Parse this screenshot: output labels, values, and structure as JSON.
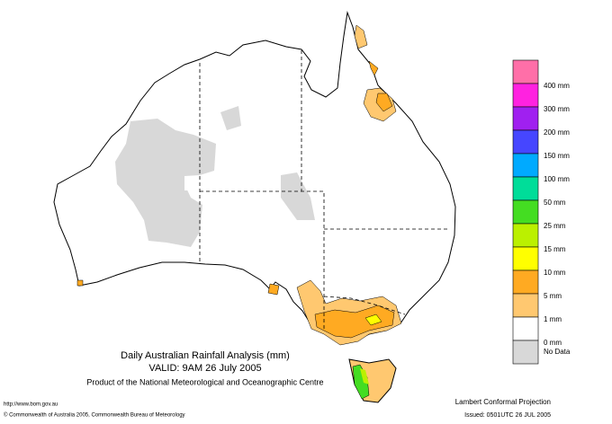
{
  "title": "Daily Australian Rainfall Analysis (mm)",
  "valid": "VALID: 9AM 26 July 2005",
  "product": "Product of the National Meteorological and Oceanographic Centre",
  "url": "http://www.bom.gov.au",
  "copyright": "© Commonwealth of Australia 2005, Commonwealth Bureau of Meteorology",
  "projection": "Lambert Conformal Projection",
  "issued": "Issued: 0501UTC 26 JUL 2005",
  "legend": {
    "colors": [
      "#ff6fa8",
      "#ff22e0",
      "#a020f0",
      "#4646ff",
      "#00aaff",
      "#00dd99",
      "#44dd22",
      "#bbf000",
      "#ffff00",
      "#ffaa22",
      "#ffc870",
      "#ffffff",
      "#d8d8d8"
    ],
    "labels": [
      "400 mm",
      "300 mm",
      "200 mm",
      "150 mm",
      "100 mm",
      "50 mm",
      "25 mm",
      "15 mm",
      "10 mm",
      "5 mm",
      "1 mm",
      "0 mm",
      "No Data"
    ]
  }
}
